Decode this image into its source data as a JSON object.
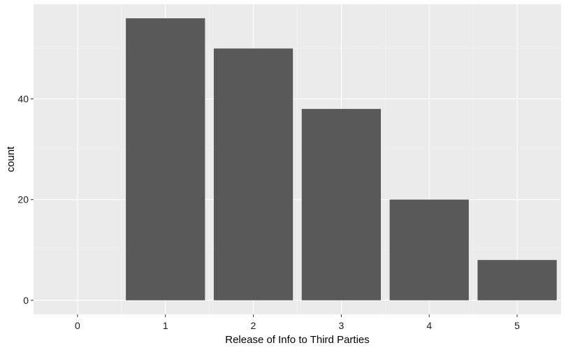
{
  "chart_data": {
    "type": "bar",
    "categories": [
      "1",
      "2",
      "3",
      "4",
      "5"
    ],
    "x": [
      1,
      2,
      3,
      4,
      5
    ],
    "values": [
      56,
      50,
      38,
      20,
      8
    ],
    "xlabel": "Release of Info to Third Parties",
    "ylabel": "count",
    "xticks": [
      "0",
      "1",
      "2",
      "3",
      "4",
      "5"
    ],
    "yticks": [
      "0",
      "20",
      "40"
    ],
    "xlim": [
      -0.5,
      5.5
    ],
    "ylim": [
      -2.8,
      58.8
    ],
    "grid": true,
    "colors": {
      "panel": "#EBEBEB",
      "grid_major": "#FFFFFF",
      "grid_minor": "#F4F4F4",
      "bar": "#595959",
      "tick": "#333333"
    }
  }
}
